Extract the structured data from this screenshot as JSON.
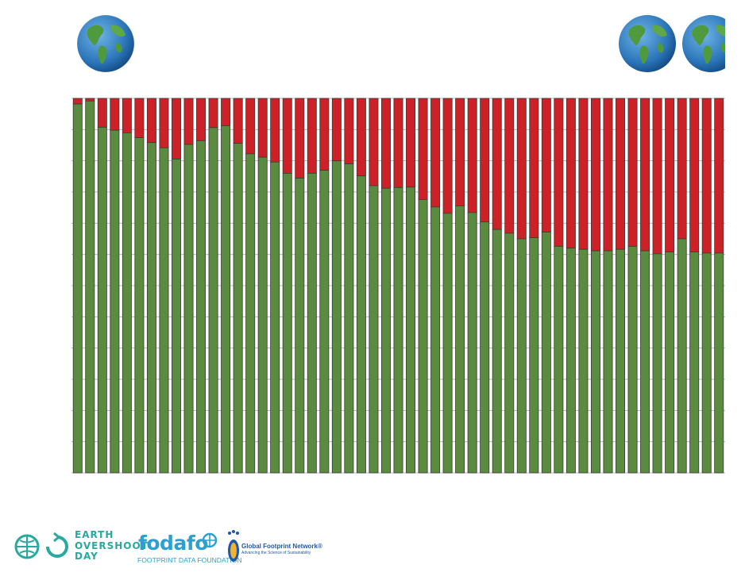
{
  "chart_data": {
    "type": "bar",
    "stacked": true,
    "normalized": true,
    "bar_count": 53,
    "gridlines": 12,
    "grid": true,
    "series": [
      {
        "color": "#5a8b3f",
        "values": [
          0.985,
          0.993,
          0.923,
          0.915,
          0.908,
          0.895,
          0.882,
          0.868,
          0.838,
          0.877,
          0.887,
          0.922,
          0.927,
          0.88,
          0.852,
          0.843,
          0.83,
          0.8,
          0.787,
          0.8,
          0.808,
          0.833,
          0.825,
          0.793,
          0.767,
          0.76,
          0.762,
          0.763,
          0.73,
          0.71,
          0.693,
          0.713,
          0.695,
          0.67,
          0.65,
          0.64,
          0.625,
          0.628,
          0.643,
          0.605,
          0.6,
          0.597,
          0.593,
          0.593,
          0.597,
          0.605,
          0.593,
          0.585,
          0.59,
          0.625,
          0.59,
          0.587,
          0.587
        ]
      },
      {
        "color": "#cc2127",
        "values": [
          0.015,
          0.007,
          0.077,
          0.085,
          0.092,
          0.105,
          0.118,
          0.132,
          0.162,
          0.123,
          0.113,
          0.078,
          0.073,
          0.12,
          0.148,
          0.157,
          0.17,
          0.2,
          0.213,
          0.2,
          0.192,
          0.167,
          0.175,
          0.207,
          0.233,
          0.24,
          0.238,
          0.237,
          0.27,
          0.29,
          0.307,
          0.287,
          0.305,
          0.33,
          0.35,
          0.36,
          0.375,
          0.372,
          0.357,
          0.395,
          0.4,
          0.403,
          0.407,
          0.407,
          0.403,
          0.395,
          0.407,
          0.415,
          0.41,
          0.375,
          0.41,
          0.413,
          0.413
        ]
      }
    ]
  },
  "decorations": {
    "globe_icon": "earth-globe-icon",
    "globe_count_left": 1,
    "globe_count_right": 2
  },
  "logos": {
    "eod": {
      "text": "EARTH\nOVERSHOOT\nDAY",
      "color": "#27a9a0"
    },
    "fodafo": {
      "word": "fodafo",
      "sub": "FOOTPRINT DATA FOUNDATION",
      "color": "#2e9fd0"
    },
    "gfn": {
      "title": "Global Footprint Network®",
      "sub": "Advancing the Science of Sustainability",
      "color": "#1e5aa8"
    }
  }
}
